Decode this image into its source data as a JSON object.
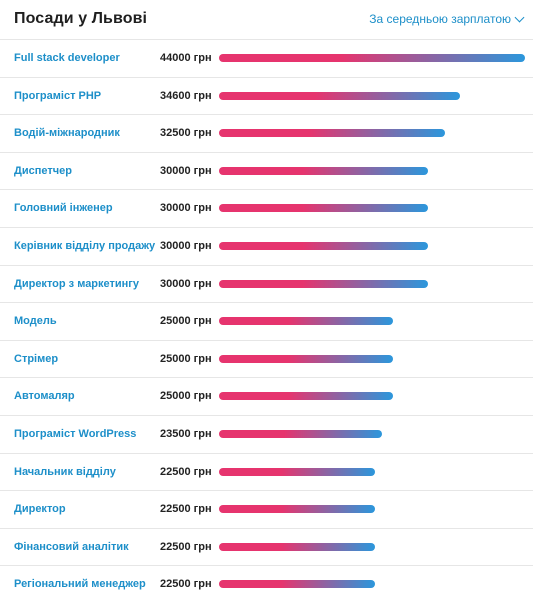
{
  "header": {
    "title": "Посади у Львові",
    "sort_label": "За середньою зарплатою"
  },
  "colors": {
    "link": "#1d8fc9",
    "bar_start": "#e6346e",
    "bar_end": "#2b97dc",
    "divider": "#e6e6e6"
  },
  "icons": {
    "sort_toggle": "chevron-down-icon"
  },
  "currency": "грн",
  "rows": [
    {
      "name": "Full stack developer",
      "salary": 44000,
      "salary_label": "44000 грн"
    },
    {
      "name": "Програміст PHP",
      "salary": 34600,
      "salary_label": "34600 грн"
    },
    {
      "name": "Водій-міжнародник",
      "salary": 32500,
      "salary_label": "32500 грн"
    },
    {
      "name": "Диспетчер",
      "salary": 30000,
      "salary_label": "30000 грн"
    },
    {
      "name": "Головний інженер",
      "salary": 30000,
      "salary_label": "30000 грн"
    },
    {
      "name": "Керівник відділу продажу",
      "salary": 30000,
      "salary_label": "30000 грн"
    },
    {
      "name": "Директор з маркетингу",
      "salary": 30000,
      "salary_label": "30000 грн"
    },
    {
      "name": "Модель",
      "salary": 25000,
      "salary_label": "25000 грн"
    },
    {
      "name": "Стрімер",
      "salary": 25000,
      "salary_label": "25000 грн"
    },
    {
      "name": "Автомаляр",
      "salary": 25000,
      "salary_label": "25000 грн"
    },
    {
      "name": "Програміст WordPress",
      "salary": 23500,
      "salary_label": "23500 грн"
    },
    {
      "name": "Начальник відділу",
      "salary": 22500,
      "salary_label": "22500 грн"
    },
    {
      "name": "Директор",
      "salary": 22500,
      "salary_label": "22500 грн"
    },
    {
      "name": "Фінансовий аналітик",
      "salary": 22500,
      "salary_label": "22500 грн"
    },
    {
      "name": "Регіональний менеджер",
      "salary": 22500,
      "salary_label": "22500 грн"
    }
  ]
}
